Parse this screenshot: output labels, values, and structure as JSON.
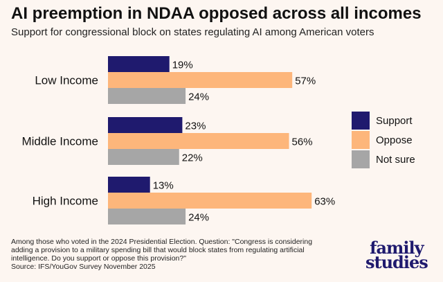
{
  "title": "AI preemption in NDAA opposed across all incomes",
  "subtitle": "Support for congressional block on states regulating AI among American voters",
  "note": "Among those who voted in the 2024 Presidential Election. Question: \"Congress is considering adding a provision to a military spending bill that would block states from regulating artificial intelligence. Do you support or oppose this provision?\"",
  "source": "Source: IFS/YouGov Survey November 2025",
  "logo": [
    "family",
    "studies"
  ],
  "chart_data": {
    "type": "bar",
    "orientation": "horizontal",
    "categories": [
      "Low Income",
      "Middle Income",
      "High Income"
    ],
    "series": [
      {
        "name": "Support",
        "color": "#1f1a6e",
        "values": [
          19,
          23,
          13
        ]
      },
      {
        "name": "Oppose",
        "color": "#fdb67b",
        "values": [
          57,
          56,
          63
        ]
      },
      {
        "name": "Not sure",
        "color": "#a6a6a6",
        "values": [
          24,
          22,
          24
        ]
      }
    ],
    "value_suffix": "%",
    "legend": "right",
    "grid": false
  }
}
